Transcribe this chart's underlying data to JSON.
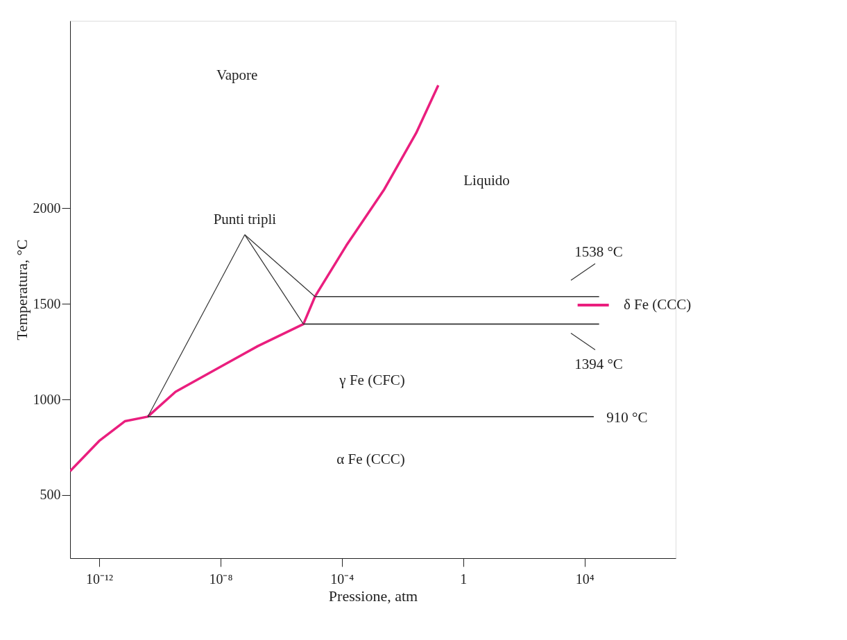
{
  "chart_data": {
    "type": "line",
    "xlabel": "Pressione, atm",
    "ylabel": "Temperatura, °C",
    "log": "x",
    "xlim": [
      1.1e-13,
      10000000.0
    ],
    "ylim": [
      170,
      2980
    ],
    "xticks": [
      {
        "value": 1e-12,
        "label": "10⁻¹²"
      },
      {
        "value": 1e-08,
        "label": "10⁻⁸"
      },
      {
        "value": 0.0001,
        "label": "10⁻⁴"
      },
      1,
      {
        "value": 10000,
        "label": "10⁴"
      }
    ],
    "yticks": [
      500,
      1000,
      1500,
      2000
    ],
    "grid": false,
    "marker": "none",
    "line_style": "solid",
    "series": [
      {
        "color": "#ea1e7e",
        "x": [
          1.1e-13,
          1e-12,
          7e-12,
          4e-11,
          3.3e-10,
          9.5e-09,
          1.7e-07,
          5.4e-06,
          1.3e-05,
          0.00014,
          0.0025,
          0.028,
          0.15
        ],
        "values": [
          625,
          783,
          886,
          910,
          1040,
          1169,
          1279,
          1394,
          1538,
          1805,
          2099,
          2393,
          2643
        ]
      },
      {
        "color": "#333333",
        "x": [
          4e-11,
          20000
        ],
        "values": [
          910,
          910
        ]
      },
      {
        "color": "#333333",
        "x": [
          5.4e-06,
          30000
        ],
        "values": [
          1394,
          1394
        ]
      },
      {
        "color": "#333333",
        "x": [
          1.3e-05,
          30000
        ],
        "values": [
          1538,
          1538
        ]
      }
    ],
    "annotations": [
      "Vapore",
      "Liquido",
      {
        "text": "Punti tripli",
        "x": 5.4e-06,
        "y": 1394
      },
      "1538 °C",
      "δ Fe (CCC)",
      "1394 °C",
      "γ Fe (CFC)",
      "910 °C",
      "α Fe (CCC)"
    ]
  }
}
